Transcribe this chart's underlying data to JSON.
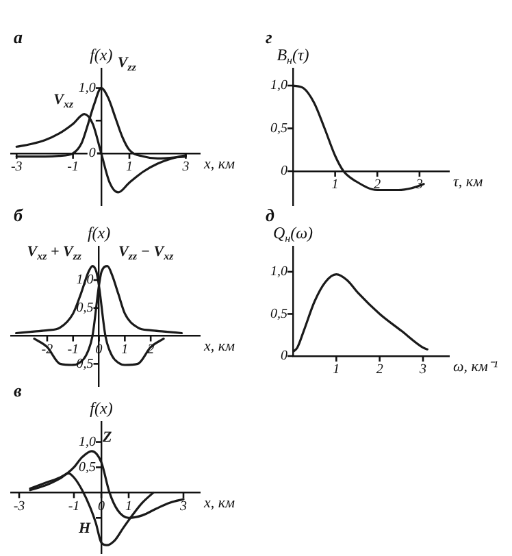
{
  "chart_data": [
    {
      "type": "line",
      "title": "а",
      "xlabel": "x, км",
      "ylabel": "f(x)",
      "xlim": [
        -3.2,
        3.5
      ],
      "ylim": [
        -0.8,
        1.3
      ],
      "xticks": [
        -3,
        -1,
        1,
        3
      ],
      "yticks": [
        {
          "value": 0,
          "label": "0"
        },
        {
          "value": 0.5,
          "label": null
        },
        {
          "value": 1,
          "label": "1,0"
        }
      ],
      "grid": false,
      "legend": false,
      "marker": "none",
      "line_style": "solid",
      "series": [
        {
          "name": "V$_{zz}$",
          "color": "#1a1a1a",
          "x": [
            -3,
            -2,
            -1.5,
            -1,
            -0.7,
            -0.5,
            -0.25,
            0,
            0.25,
            0.5,
            0.75,
            1,
            1.5,
            2,
            3
          ],
          "values": [
            -0.05,
            -0.05,
            -0.04,
            0,
            0.15,
            0.4,
            0.75,
            1.0,
            0.85,
            0.55,
            0.25,
            0.05,
            -0.05,
            -0.08,
            -0.05
          ]
        },
        {
          "name": "V$_{xz}$",
          "color": "#1a1a1a",
          "x": [
            -3,
            -2.5,
            -2,
            -1.5,
            -1,
            -0.6,
            -0.3,
            0,
            0.3,
            0.6,
            1,
            1.5,
            2,
            2.5,
            3
          ],
          "values": [
            0.1,
            0.14,
            0.2,
            0.3,
            0.45,
            0.6,
            0.45,
            0,
            -0.45,
            -0.6,
            -0.45,
            -0.28,
            -0.16,
            -0.08,
            -0.03
          ]
        }
      ]
    },
    {
      "type": "line",
      "title": "г",
      "xlabel": "τ, км",
      "ylabel": "B$_{н}$(τ)",
      "xlim": [
        0,
        3.7
      ],
      "ylim": [
        -0.4,
        1.2
      ],
      "xticks": [
        1,
        2,
        3
      ],
      "yticks": [
        {
          "value": 0,
          "label": "0"
        },
        {
          "value": 0.5,
          "label": "0,5"
        },
        {
          "value": 1,
          "label": "1,0"
        }
      ],
      "grid": false,
      "legend": false,
      "marker": "none",
      "line_style": "solid",
      "series": [
        {
          "color": "#1a1a1a",
          "x": [
            0,
            0.25,
            0.5,
            0.75,
            1,
            1.2,
            1.5,
            2,
            2.5,
            2.8,
            3.1
          ],
          "values": [
            1,
            0.97,
            0.8,
            0.5,
            0.18,
            0,
            -0.12,
            -0.22,
            -0.22,
            -0.2,
            -0.15
          ]
        }
      ]
    },
    {
      "type": "line",
      "title": "б",
      "xlabel": "x, км",
      "ylabel": "f(x)",
      "xlim": [
        -3.4,
        3.9
      ],
      "ylim": [
        -0.9,
        1.6
      ],
      "xticks": [
        -2,
        -1,
        0,
        1,
        2
      ],
      "yticks": [
        {
          "value": 1,
          "label": "1,0"
        },
        {
          "value": 0.5,
          "label": "0,5"
        },
        {
          "value": -0.5,
          "label": "-0,5"
        }
      ],
      "grid": false,
      "legend": false,
      "marker": "none",
      "line_style": "solid",
      "series": [
        {
          "name": "V$_{xz}$ + V$_{zz}$",
          "color": "#1a1a1a",
          "x": [
            -3.2,
            -2.5,
            -2,
            -1.5,
            -1,
            -0.7,
            -0.4,
            -0.25,
            -0.1,
            0,
            0.25,
            0.5,
            0.75,
            1,
            1.5,
            2,
            2.5
          ],
          "values": [
            0.05,
            0.08,
            0.1,
            0.15,
            0.4,
            0.75,
            1.15,
            1.25,
            1.15,
            0.9,
            0,
            -0.35,
            -0.48,
            -0.52,
            -0.5,
            -0.2,
            -0.05
          ]
        },
        {
          "name": "V$_{zz}$ − V$_{xz}$",
          "color": "#1a1a1a",
          "x": [
            -2.5,
            -2,
            -1.5,
            -1,
            -0.75,
            -0.5,
            -0.25,
            0,
            0.1,
            0.33,
            0.5,
            0.75,
            1,
            1.5,
            2,
            2.5,
            3.2
          ],
          "values": [
            -0.05,
            -0.2,
            -0.5,
            -0.52,
            -0.48,
            -0.35,
            0,
            0.9,
            1.15,
            1.25,
            1.1,
            0.75,
            0.4,
            0.15,
            0.1,
            0.08,
            0.05
          ]
        }
      ]
    },
    {
      "type": "line",
      "title": "д",
      "xlabel": "ω, км⁻¹",
      "ylabel": "Q$_{н}$(ω)",
      "xlim": [
        0,
        3.6
      ],
      "ylim": [
        0,
        1.3
      ],
      "xticks": [
        1,
        2,
        3
      ],
      "yticks": [
        {
          "value": 0,
          "label": "0"
        },
        {
          "value": 0.5,
          "label": "0,5"
        },
        {
          "value": 1,
          "label": "1,0"
        }
      ],
      "grid": false,
      "legend": false,
      "marker": "none",
      "line_style": "solid",
      "series": [
        {
          "color": "#1a1a1a",
          "x": [
            0,
            0.1,
            0.25,
            0.5,
            0.75,
            1,
            1.25,
            1.5,
            2,
            2.5,
            3,
            3.1
          ],
          "values": [
            0.05,
            0.1,
            0.3,
            0.65,
            0.88,
            0.97,
            0.9,
            0.75,
            0.5,
            0.3,
            0.1,
            0.08
          ]
        }
      ]
    },
    {
      "type": "line",
      "title": "в",
      "xlabel": "x, км",
      "ylabel": "f(x)",
      "xlim": [
        -3.3,
        3.6
      ],
      "ylim": [
        -1.2,
        1.4
      ],
      "xticks": [
        -3,
        -1,
        0,
        1,
        3
      ],
      "yticks": [
        {
          "value": 1,
          "label": "1,0"
        },
        {
          "value": 0.5,
          "label": "0,5"
        },
        {
          "value": -0.5,
          "label": null
        }
      ],
      "grid": false,
      "legend": false,
      "marker": "none",
      "line_style": "solid",
      "series": [
        {
          "name": "Z",
          "color": "#1a1a1a",
          "x": [
            -2.6,
            -2,
            -1.5,
            -1.2,
            -1,
            -0.7,
            -0.35,
            0,
            0.3,
            0.6,
            1,
            1.5,
            2,
            2.5,
            3
          ],
          "values": [
            0.08,
            0.2,
            0.3,
            0.4,
            0.5,
            0.7,
            0.82,
            0.6,
            0,
            -0.35,
            -0.5,
            -0.45,
            -0.32,
            -0.2,
            -0.13
          ]
        },
        {
          "name": "H",
          "color": "#1a1a1a",
          "x": [
            -2.6,
            -2,
            -1.5,
            -1.2,
            -1,
            -0.7,
            -0.4,
            -0.2,
            0,
            0.2,
            0.5,
            0.8,
            1.2,
            1.5,
            1.9
          ],
          "values": [
            0.05,
            0.15,
            0.28,
            0.38,
            0.3,
            0.05,
            -0.3,
            -0.6,
            -0.99,
            -1.04,
            -0.94,
            -0.7,
            -0.4,
            -0.2,
            0
          ]
        }
      ]
    }
  ]
}
